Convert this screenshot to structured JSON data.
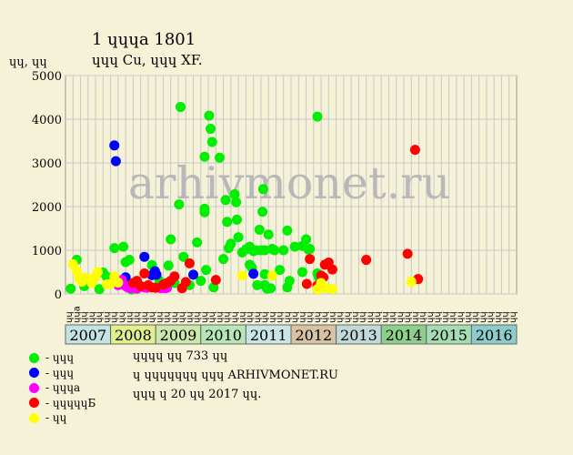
{
  "title": "1 ɥɥɥa 1801",
  "subtitle": "ɥɥɥ Cu, ɥɥɥ XF.",
  "chart_data": {
    "type": "scatter",
    "ylabel": "ɥɥ, ɥɥ",
    "ylim": [
      0,
      5000
    ],
    "yticks": [
      0,
      1000,
      2000,
      3000,
      4000,
      5000
    ],
    "grid": true,
    "legend_placement": "bottom-left",
    "watermark": "arhivmonet.ru",
    "x_categories": [
      "ɥɥ",
      "ɥɥа",
      "ɥɥ",
      "ɥɥ",
      "ɥɥ",
      "ɥɥ",
      "ɥɥ",
      "ɥɥ",
      "ɥɥ",
      "ɥɥ",
      "ɥɥ",
      "ɥɥ",
      "ɥɥ",
      "ɥɥ",
      "ɥɥ",
      "ɥɥ",
      "ɥɥ",
      "ɥɥ",
      "ɥɥ",
      "ɥɥ",
      "ɥɥ",
      "ɥɥ",
      "ɥɥ",
      "ɥɥ",
      "ɥɥ",
      "ɥɥ",
      "ɥɥ",
      "ɥɥ",
      "ɥɥ",
      "ɥɥ",
      "ɥɥ",
      "ɥɥ",
      "ɥɥ",
      "ɥɥ",
      "ɥɥ",
      "ɥɥ",
      "ɥɥ",
      "ɥɥ",
      "ɥɥ",
      "ɥɥ",
      "ɥɥ",
      "ɥɥ",
      "ɥɥ",
      "ɥɥ",
      "ɥɥ",
      "ɥɥ",
      "ɥɥ",
      "ɥɥ",
      "ɥɥ",
      "ɥɥ",
      "ɥɥ",
      "ɥɥ",
      "ɥɥ",
      "ɥɥ",
      "ɥɥ",
      "ɥɥ",
      "ɥɥ",
      "ɥɥ",
      "ɥɥ",
      "ɥɥ"
    ],
    "years": [
      {
        "label": "2007",
        "color": "#c4e3e3"
      },
      {
        "label": "2008",
        "color": "#e0f08c"
      },
      {
        "label": "2009",
        "color": "#cbe7ab"
      },
      {
        "label": "2010",
        "color": "#b6e6b6"
      },
      {
        "label": "2011",
        "color": "#c9e6e6"
      },
      {
        "label": "2012",
        "color": "#d7c2a3"
      },
      {
        "label": "2013",
        "color": "#c2d9d9"
      },
      {
        "label": "2014",
        "color": "#8cd08c"
      },
      {
        "label": "2015",
        "color": "#a6dcb4"
      },
      {
        "label": "2016",
        "color": "#8ccccc"
      }
    ],
    "series": [
      {
        "name": "ɥɥɥ",
        "color": "#00ee00",
        "points": [
          [
            0.2,
            120
          ],
          [
            1,
            780
          ],
          [
            2,
            180
          ],
          [
            4,
            110
          ],
          [
            4.5,
            490
          ],
          [
            5,
            390
          ],
          [
            6,
            1050
          ],
          [
            7,
            300
          ],
          [
            7.2,
            1080
          ],
          [
            7.5,
            730
          ],
          [
            8,
            780
          ],
          [
            8.3,
            100
          ],
          [
            11,
            660
          ],
          [
            12,
            300
          ],
          [
            13.2,
            650
          ],
          [
            13.5,
            1250
          ],
          [
            14,
            250
          ],
          [
            14.6,
            2050
          ],
          [
            14.8,
            4280
          ],
          [
            15.2,
            850
          ],
          [
            16,
            200
          ],
          [
            17,
            1180
          ],
          [
            17.5,
            300
          ],
          [
            18,
            1950
          ],
          [
            18,
            1870
          ],
          [
            18,
            3140
          ],
          [
            18.2,
            550
          ],
          [
            18.6,
            4080
          ],
          [
            18.8,
            3780
          ],
          [
            19,
            3480
          ],
          [
            19.2,
            150
          ],
          [
            20,
            3120
          ],
          [
            20.5,
            800
          ],
          [
            20.8,
            2150
          ],
          [
            21,
            1650
          ],
          [
            21.2,
            1050
          ],
          [
            21.5,
            1150
          ],
          [
            22,
            2280
          ],
          [
            22.2,
            2100
          ],
          [
            22.3,
            1700
          ],
          [
            22.5,
            1300
          ],
          [
            23,
            950
          ],
          [
            23.5,
            1020
          ],
          [
            24,
            1080
          ],
          [
            24,
            670
          ],
          [
            24.3,
            600
          ],
          [
            24.5,
            980
          ],
          [
            24.8,
            1000
          ],
          [
            25,
            200
          ],
          [
            25.3,
            1470
          ],
          [
            25.5,
            1000
          ],
          [
            25.7,
            1880
          ],
          [
            25.8,
            2400
          ],
          [
            26,
            200
          ],
          [
            26,
            450
          ],
          [
            26,
            1000
          ],
          [
            26.3,
            120
          ],
          [
            26.5,
            1360
          ],
          [
            26.8,
            130
          ],
          [
            27,
            1030
          ],
          [
            27.3,
            1000
          ],
          [
            28,
            550
          ],
          [
            28.5,
            1000
          ],
          [
            29,
            150
          ],
          [
            29,
            1450
          ],
          [
            29.3,
            300
          ],
          [
            30,
            1080
          ],
          [
            31,
            1100
          ],
          [
            31,
            500
          ],
          [
            31.5,
            1250
          ],
          [
            31.8,
            1020
          ],
          [
            32,
            1030
          ],
          [
            33,
            4060
          ],
          [
            33,
            470
          ],
          [
            33.2,
            380
          ],
          [
            33.5,
            220
          ]
        ]
      },
      {
        "name": "ɥɥɥ",
        "color": "#0000ff",
        "points": [
          [
            6,
            3400
          ],
          [
            6.2,
            3040
          ],
          [
            7.5,
            380
          ],
          [
            10,
            850
          ],
          [
            11,
            430
          ],
          [
            11.4,
            520
          ],
          [
            11.6,
            440
          ],
          [
            16.5,
            440
          ],
          [
            24.5,
            460
          ]
        ]
      },
      {
        "name": "ɥɥɥа",
        "color": "#ff00ff",
        "points": [
          [
            6.5,
            200
          ],
          [
            7,
            320
          ],
          [
            7.3,
            200
          ],
          [
            7.6,
            170
          ],
          [
            7.9,
            140
          ],
          [
            8.2,
            130
          ],
          [
            8.5,
            200
          ],
          [
            9,
            120
          ],
          [
            9.5,
            170
          ],
          [
            10,
            150
          ],
          [
            10.3,
            140
          ],
          [
            12.2,
            130
          ],
          [
            12.8,
            130
          ],
          [
            13,
            140
          ]
        ]
      },
      {
        "name": "ɥɥɥɥɥБ",
        "color": "#ff0000",
        "points": [
          [
            8.5,
            250
          ],
          [
            9,
            300
          ],
          [
            9.5,
            180
          ],
          [
            10,
            470
          ],
          [
            10.5,
            200
          ],
          [
            11,
            150
          ],
          [
            11.5,
            140
          ],
          [
            12.5,
            210
          ],
          [
            13,
            250
          ],
          [
            13.5,
            300
          ],
          [
            14,
            400
          ],
          [
            15,
            130
          ],
          [
            15.5,
            270
          ],
          [
            16,
            700
          ],
          [
            19.5,
            320
          ],
          [
            31.6,
            230
          ],
          [
            32,
            800
          ],
          [
            33,
            190
          ],
          [
            33.5,
            420
          ],
          [
            33.8,
            380
          ],
          [
            34,
            670
          ],
          [
            34.5,
            720
          ],
          [
            35,
            560
          ],
          [
            39.5,
            780
          ],
          [
            45,
            920
          ],
          [
            46,
            3300
          ],
          [
            46.4,
            340
          ]
        ]
      },
      {
        "name": "ɥɥ",
        "color": "#ffff00",
        "points": [
          [
            0.5,
            680
          ],
          [
            1,
            520
          ],
          [
            1.3,
            350
          ],
          [
            1.7,
            280
          ],
          [
            2,
            370
          ],
          [
            2.5,
            350
          ],
          [
            3,
            250
          ],
          [
            3.5,
            380
          ],
          [
            3.8,
            500
          ],
          [
            5,
            220
          ],
          [
            5.5,
            230
          ],
          [
            6,
            400
          ],
          [
            6.5,
            260
          ],
          [
            23,
            420
          ],
          [
            27,
            420
          ],
          [
            33,
            110
          ],
          [
            33.5,
            250
          ],
          [
            34,
            130
          ],
          [
            35,
            110
          ],
          [
            45.5,
            280
          ]
        ]
      }
    ],
    "legend": [
      "ɥɥɥ",
      "ɥɥɥ",
      "ɥɥɥа",
      "ɥɥɥɥɥБ",
      "ɥɥ"
    ]
  },
  "footer": {
    "line1": "ɥɥɥɥ ɥɥ 733 ɥɥ",
    "line2": "ɥ ɥɥɥɥɥɥɥ ɥɥɥ ARHIVMONET.RU",
    "line3": "ɥɥɥ ɥ 20 ɥɥ 2017 ɥɥ."
  }
}
